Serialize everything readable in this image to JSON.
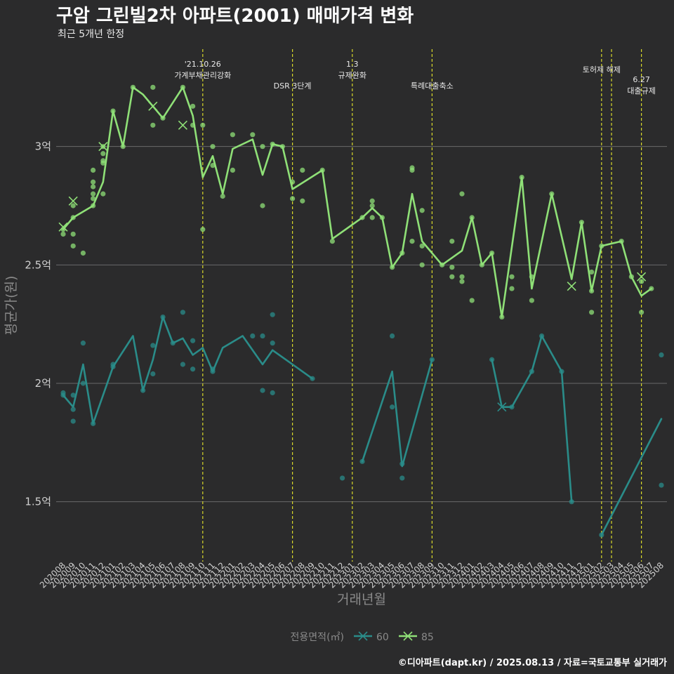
{
  "title": "구암 그린빌2차 아파트(2001) 매매가격 변화",
  "subtitle": "최근 5개년 한정",
  "caption": "©디아파트(dapt.kr) / 2025.08.13 / 자료=국토교통부 실거래가",
  "colors": {
    "bg": "#2b2b2c",
    "s60": "#2a8c89",
    "s85": "#8fe077",
    "event": "#d9d92a",
    "grid": "#6a6a6a"
  },
  "chart_data": {
    "type": "line",
    "title": "구암 그린빌2차 아파트(2001) 매매가격 변화",
    "xlabel": "거래년월",
    "ylabel": "평균가(원)",
    "ylim": [
      1.25,
      3.5
    ],
    "y_ticks": [
      {
        "value": 1.5,
        "label": "1.5억"
      },
      {
        "value": 2.0,
        "label": "2억"
      },
      {
        "value": 2.5,
        "label": "2.5억"
      },
      {
        "value": 3.0,
        "label": "3억"
      }
    ],
    "categories": [
      "202008",
      "202009",
      "202010",
      "202011",
      "202012",
      "202101",
      "202102",
      "202103",
      "202104",
      "202105",
      "202106",
      "202107",
      "202108",
      "202109",
      "202110",
      "202111",
      "202112",
      "202201",
      "202202",
      "202203",
      "202204",
      "202205",
      "202206",
      "202207",
      "202208",
      "202209",
      "202210",
      "202211",
      "202212",
      "202301",
      "202302",
      "202303",
      "202304",
      "202305",
      "202306",
      "202307",
      "202308",
      "202309",
      "202310",
      "202311",
      "202312",
      "202401",
      "202402",
      "202403",
      "202404",
      "202405",
      "202406",
      "202407",
      "202408",
      "202409",
      "202410",
      "202411",
      "202412",
      "202501",
      "202502",
      "202503",
      "202504",
      "202505",
      "202506",
      "202507",
      "202508"
    ],
    "legend_title": "전용면적(㎡)",
    "series": [
      {
        "name": "60",
        "color": "#2a8c89",
        "line_segments": [
          [
            [
              0,
              1.95
            ],
            [
              1,
              1.9
            ],
            [
              2,
              2.08
            ],
            [
              3,
              1.83
            ],
            [
              5,
              2.07
            ],
            [
              7,
              2.2
            ],
            [
              8,
              1.97
            ],
            [
              9,
              2.1
            ],
            [
              10,
              2.28
            ],
            [
              11,
              2.17
            ],
            [
              12,
              2.19
            ],
            [
              13,
              2.12
            ],
            [
              14,
              2.15
            ],
            [
              15,
              2.05
            ],
            [
              16,
              2.15
            ],
            [
              18,
              2.2
            ],
            [
              20,
              2.08
            ],
            [
              21,
              2.14
            ],
            [
              23,
              2.08
            ],
            [
              25,
              2.02
            ]
          ],
          [
            [
              30,
              1.67
            ],
            [
              33,
              2.05
            ],
            [
              34,
              1.65
            ],
            [
              37,
              2.1
            ]
          ],
          [
            [
              43,
              2.1
            ],
            [
              44,
              1.9
            ],
            [
              45,
              1.9
            ],
            [
              47,
              2.05
            ],
            [
              48,
              2.2
            ],
            [
              50,
              2.05
            ],
            [
              51,
              1.5
            ]
          ],
          [
            [
              54,
              1.36
            ],
            [
              60,
              1.85
            ]
          ]
        ],
        "points": [
          [
            0,
            1.96
          ],
          [
            0,
            1.95
          ],
          [
            1,
            1.89
          ],
          [
            1,
            1.84
          ],
          [
            1,
            1.95
          ],
          [
            2,
            2.17
          ],
          [
            2,
            2.0
          ],
          [
            3,
            1.83
          ],
          [
            5,
            2.08
          ],
          [
            5,
            2.07
          ],
          [
            8,
            1.97
          ],
          [
            9,
            2.04
          ],
          [
            9,
            2.16
          ],
          [
            10,
            2.28
          ],
          [
            11,
            2.17
          ],
          [
            12,
            2.3
          ],
          [
            12,
            2.08
          ],
          [
            13,
            2.06
          ],
          [
            13,
            2.18
          ],
          [
            15,
            2.06
          ],
          [
            15,
            2.05
          ],
          [
            19,
            2.2
          ],
          [
            20,
            1.97
          ],
          [
            20,
            2.2
          ],
          [
            21,
            2.29
          ],
          [
            21,
            2.17
          ],
          [
            21,
            1.96
          ],
          [
            25,
            2.02
          ],
          [
            28,
            1.6
          ],
          [
            30,
            1.67
          ],
          [
            33,
            2.2
          ],
          [
            33,
            1.9
          ],
          [
            34,
            1.6
          ],
          [
            34,
            1.66
          ],
          [
            37,
            2.1
          ],
          [
            43,
            2.1
          ],
          [
            45,
            1.9
          ],
          [
            47,
            2.05
          ],
          [
            48,
            2.2
          ],
          [
            50,
            2.05
          ],
          [
            51,
            1.5
          ],
          [
            54,
            1.36
          ],
          [
            60,
            2.12
          ],
          [
            60,
            1.57
          ]
        ],
        "cross_markers": [
          [
            44,
            1.9
          ]
        ]
      },
      {
        "name": "85",
        "color": "#8fe077",
        "line_segments": [
          [
            [
              0,
              2.65
            ],
            [
              1,
              2.7
            ],
            [
              3,
              2.75
            ],
            [
              4,
              2.85
            ],
            [
              5,
              3.15
            ],
            [
              6,
              3.0
            ],
            [
              7,
              3.25
            ],
            [
              8,
              3.22
            ],
            [
              9,
              3.17
            ],
            [
              10,
              3.12
            ],
            [
              12,
              3.25
            ],
            [
              13,
              3.13
            ],
            [
              14,
              2.87
            ],
            [
              15,
              2.96
            ],
            [
              16,
              2.8
            ],
            [
              17,
              2.99
            ],
            [
              19,
              3.03
            ],
            [
              20,
              2.88
            ],
            [
              21,
              3.01
            ],
            [
              22,
              3.0
            ],
            [
              23,
              2.82
            ],
            [
              26,
              2.9
            ],
            [
              27,
              2.61
            ],
            [
              30,
              2.7
            ],
            [
              31,
              2.74
            ],
            [
              32,
              2.7
            ],
            [
              33,
              2.49
            ],
            [
              34,
              2.55
            ],
            [
              35,
              2.8
            ],
            [
              36,
              2.6
            ],
            [
              38,
              2.5
            ],
            [
              40,
              2.56
            ],
            [
              41,
              2.7
            ],
            [
              42,
              2.5
            ],
            [
              43,
              2.55
            ],
            [
              44,
              2.28
            ],
            [
              46,
              2.87
            ],
            [
              47,
              2.4
            ],
            [
              49,
              2.8
            ],
            [
              51,
              2.44
            ],
            [
              52,
              2.68
            ],
            [
              53,
              2.39
            ],
            [
              54,
              2.58
            ],
            [
              56,
              2.6
            ],
            [
              57,
              2.45
            ],
            [
              58,
              2.37
            ],
            [
              59,
              2.4
            ]
          ]
        ],
        "points": [
          [
            0,
            2.63
          ],
          [
            0,
            2.65
          ],
          [
            1,
            2.75
          ],
          [
            1,
            2.7
          ],
          [
            1,
            2.63
          ],
          [
            1,
            2.58
          ],
          [
            2,
            2.55
          ],
          [
            3,
            2.75
          ],
          [
            3,
            2.78
          ],
          [
            3,
            2.8
          ],
          [
            3,
            2.83
          ],
          [
            3,
            2.85
          ],
          [
            3,
            2.9
          ],
          [
            4,
            2.93
          ],
          [
            4,
            2.94
          ],
          [
            4,
            2.97
          ],
          [
            4,
            3.0
          ],
          [
            4,
            2.8
          ],
          [
            5,
            3.15
          ],
          [
            6,
            3.0
          ],
          [
            7,
            3.25
          ],
          [
            9,
            3.25
          ],
          [
            9,
            3.09
          ],
          [
            10,
            3.12
          ],
          [
            12,
            3.25
          ],
          [
            13,
            3.17
          ],
          [
            13,
            3.09
          ],
          [
            14,
            3.09
          ],
          [
            14,
            2.65
          ],
          [
            15,
            3.0
          ],
          [
            15,
            2.92
          ],
          [
            16,
            2.79
          ],
          [
            17,
            3.05
          ],
          [
            17,
            2.9
          ],
          [
            19,
            3.05
          ],
          [
            20,
            3.0
          ],
          [
            20,
            2.75
          ],
          [
            21,
            3.01
          ],
          [
            22,
            3.0
          ],
          [
            23,
            2.78
          ],
          [
            23,
            2.85
          ],
          [
            24,
            2.9
          ],
          [
            24,
            2.77
          ],
          [
            26,
            2.9
          ],
          [
            27,
            2.6
          ],
          [
            30,
            2.7
          ],
          [
            31,
            2.77
          ],
          [
            31,
            2.75
          ],
          [
            31,
            2.7
          ],
          [
            32,
            2.7
          ],
          [
            33,
            2.49
          ],
          [
            34,
            2.55
          ],
          [
            35,
            2.91
          ],
          [
            35,
            2.9
          ],
          [
            35,
            2.6
          ],
          [
            36,
            2.73
          ],
          [
            36,
            2.58
          ],
          [
            36,
            2.5
          ],
          [
            38,
            2.5
          ],
          [
            39,
            2.6
          ],
          [
            39,
            2.49
          ],
          [
            39,
            2.45
          ],
          [
            40,
            2.45
          ],
          [
            40,
            2.43
          ],
          [
            41,
            2.7
          ],
          [
            41,
            2.35
          ],
          [
            40,
            2.8
          ],
          [
            42,
            2.5
          ],
          [
            43,
            2.55
          ],
          [
            44,
            2.28
          ],
          [
            45,
            2.45
          ],
          [
            45,
            2.4
          ],
          [
            46,
            2.87
          ],
          [
            47,
            2.45
          ],
          [
            47,
            2.35
          ],
          [
            49,
            2.8
          ],
          [
            52,
            2.68
          ],
          [
            53,
            2.47
          ],
          [
            53,
            2.3
          ],
          [
            53,
            2.39
          ],
          [
            54,
            2.58
          ],
          [
            56,
            2.6
          ],
          [
            57,
            2.45
          ],
          [
            58,
            2.43
          ],
          [
            58,
            2.3
          ],
          [
            59,
            2.4
          ]
        ],
        "cross_markers": [
          [
            0,
            2.66
          ],
          [
            1,
            2.77
          ],
          [
            4,
            3.0
          ],
          [
            9,
            3.17
          ],
          [
            12,
            3.09
          ],
          [
            51,
            2.41
          ],
          [
            58,
            2.45
          ]
        ]
      }
    ],
    "events": [
      {
        "index": 14.0,
        "lines": [
          "'21.10.26",
          "가계부채관리강화"
        ]
      },
      {
        "index": 23.0,
        "lines": [
          "DSR 3단계"
        ]
      },
      {
        "index": 29.0,
        "lines": [
          "1.3",
          "규제완화"
        ]
      },
      {
        "index": 37.0,
        "lines": [
          "특례대출축소"
        ]
      },
      {
        "index": 54.0,
        "lines": [
          "토허제 해제"
        ]
      },
      {
        "index": 55.0,
        "lines": []
      },
      {
        "index": 58.0,
        "lines": [
          "6.27",
          "대출규제"
        ]
      }
    ]
  }
}
